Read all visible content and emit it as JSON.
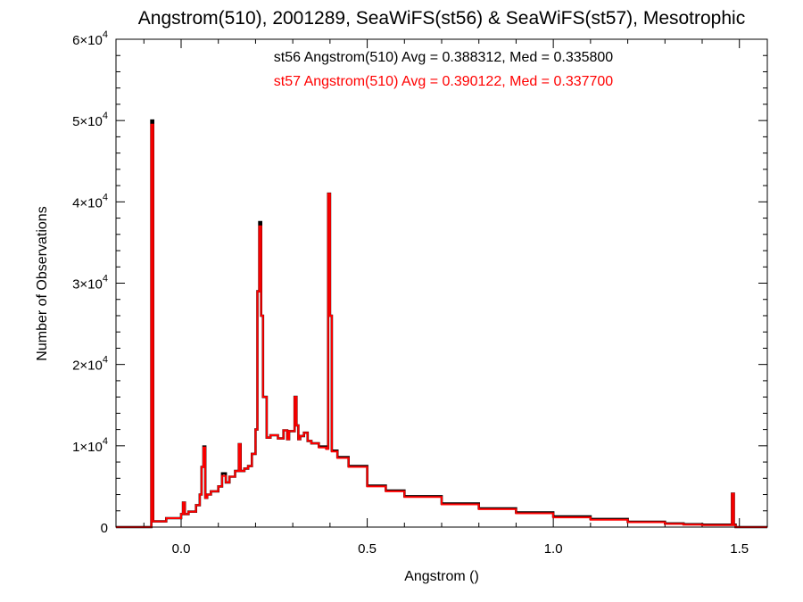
{
  "chart_data": {
    "type": "line",
    "title": "Angstrom(510), 2001289, SeaWiFS(st56) & SeaWiFS(st57), Mesotrophic",
    "xlabel": "Angstrom ()",
    "ylabel": "Number of Observations",
    "xlim": [
      -0.175,
      1.575
    ],
    "ylim": [
      0,
      60000
    ],
    "x_ticks": [
      {
        "value": 0.0,
        "label": "0.0"
      },
      {
        "value": 0.5,
        "label": "0.5"
      },
      {
        "value": 1.0,
        "label": "1.0"
      },
      {
        "value": 1.5,
        "label": "1.5"
      }
    ],
    "y_ticks": [
      {
        "value": 0,
        "label": "0"
      },
      {
        "value": 10000,
        "mant": "1×10",
        "exp": "4"
      },
      {
        "value": 20000,
        "mant": "2×10",
        "exp": "4"
      },
      {
        "value": 30000,
        "mant": "3×10",
        "exp": "4"
      },
      {
        "value": 40000,
        "mant": "4×10",
        "exp": "4"
      },
      {
        "value": 50000,
        "mant": "5×10",
        "exp": "4"
      },
      {
        "value": 60000,
        "mant": "6×10",
        "exp": "4"
      }
    ],
    "annotations": [
      {
        "text": "st56 Angstrom(510) Avg = 0.388312, Med = 0.335800",
        "color": "#000000"
      },
      {
        "text": "st57 Angstrom(510) Avg = 0.390122, Med = 0.337700",
        "color": "#ff0000"
      }
    ],
    "series": [
      {
        "color": "#000000",
        "x": [
          -0.175,
          -0.09,
          -0.08,
          -0.075,
          -0.04,
          0.0,
          0.005,
          0.01,
          0.02,
          0.04,
          0.05,
          0.055,
          0.06,
          0.065,
          0.07,
          0.08,
          0.1,
          0.11,
          0.12,
          0.13,
          0.145,
          0.155,
          0.16,
          0.17,
          0.18,
          0.19,
          0.2,
          0.205,
          0.21,
          0.215,
          0.22,
          0.23,
          0.24,
          0.26,
          0.275,
          0.285,
          0.29,
          0.305,
          0.31,
          0.315,
          0.32,
          0.33,
          0.34,
          0.35,
          0.37,
          0.39,
          0.395,
          0.4,
          0.405,
          0.42,
          0.45,
          0.5,
          0.55,
          0.6,
          0.7,
          0.8,
          0.9,
          1.0,
          1.1,
          1.2,
          1.3,
          1.35,
          1.4,
          1.48,
          1.485,
          1.49,
          1.575
        ],
        "y": [
          0,
          0,
          50000,
          700,
          1100,
          1600,
          3000,
          1600,
          1900,
          2700,
          4000,
          7400,
          9900,
          3600,
          4000,
          4400,
          5000,
          6600,
          5500,
          6200,
          6900,
          10200,
          6900,
          7200,
          7500,
          9000,
          12000,
          29000,
          37500,
          26000,
          16000,
          11000,
          11300,
          10900,
          11900,
          10800,
          11800,
          16000,
          12500,
          10800,
          11200,
          11600,
          10600,
          10300,
          9900,
          9700,
          41000,
          26000,
          9400,
          8600,
          7500,
          5100,
          4500,
          3800,
          2900,
          2300,
          1800,
          1300,
          1000,
          650,
          450,
          350,
          300,
          4100,
          300,
          0,
          0
        ]
      },
      {
        "color": "#ff0000",
        "x": [
          -0.175,
          -0.09,
          -0.08,
          -0.075,
          -0.04,
          0.0,
          0.005,
          0.01,
          0.02,
          0.04,
          0.05,
          0.055,
          0.06,
          0.065,
          0.07,
          0.08,
          0.1,
          0.11,
          0.12,
          0.13,
          0.145,
          0.155,
          0.16,
          0.17,
          0.18,
          0.19,
          0.2,
          0.205,
          0.21,
          0.215,
          0.22,
          0.23,
          0.24,
          0.26,
          0.275,
          0.285,
          0.29,
          0.305,
          0.31,
          0.315,
          0.32,
          0.33,
          0.34,
          0.35,
          0.37,
          0.39,
          0.395,
          0.4,
          0.405,
          0.42,
          0.45,
          0.5,
          0.55,
          0.6,
          0.7,
          0.8,
          0.9,
          1.0,
          1.1,
          1.2,
          1.3,
          1.35,
          1.4,
          1.48,
          1.485,
          1.49,
          1.575
        ],
        "y": [
          0,
          0,
          49500,
          700,
          1100,
          1600,
          3000,
          1600,
          1900,
          2700,
          4000,
          7400,
          9800,
          3600,
          4000,
          4400,
          5000,
          6300,
          5500,
          6200,
          6900,
          10200,
          6900,
          7200,
          7500,
          9000,
          12000,
          29000,
          37000,
          26000,
          16000,
          11000,
          11300,
          10900,
          11900,
          10800,
          11800,
          16000,
          12500,
          10800,
          11200,
          11600,
          10600,
          10300,
          9800,
          9600,
          41000,
          26000,
          9300,
          8500,
          7400,
          5000,
          4400,
          3700,
          2800,
          2200,
          1700,
          1200,
          900,
          600,
          400,
          300,
          250,
          4100,
          250,
          0,
          0
        ]
      }
    ]
  }
}
